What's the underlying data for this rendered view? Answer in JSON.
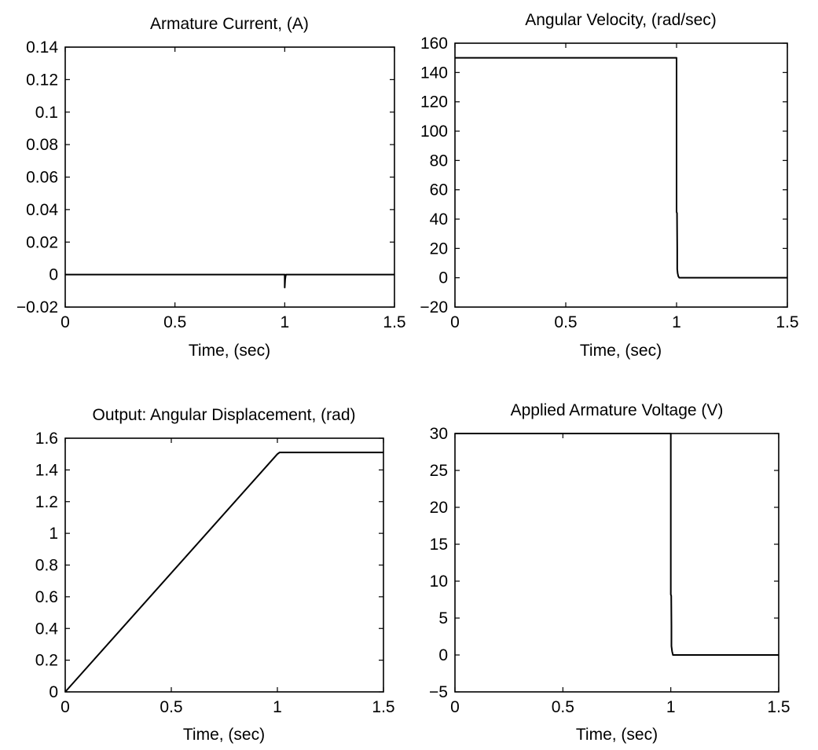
{
  "chart_data": [
    {
      "type": "line",
      "title": "Armature Current, (A)",
      "xlabel": "Time, (sec)",
      "ylabel": "",
      "xlim": [
        0,
        1.5
      ],
      "ylim": [
        -0.02,
        0.14
      ],
      "xticks": [
        0,
        0.5,
        1,
        1.5
      ],
      "xtick_labels": [
        "0",
        "0.5",
        "1",
        "1.5"
      ],
      "yticks": [
        -0.02,
        0,
        0.02,
        0.04,
        0.06,
        0.08,
        0.1,
        0.12,
        0.14
      ],
      "ytick_labels": [
        "−0.02",
        "0",
        "0.02",
        "0.04",
        "0.06",
        "0.08",
        "0.1",
        "0.12",
        "0.14"
      ],
      "grid": false,
      "series": [
        {
          "x": [
            0,
            1.0,
            1.0,
            1.002,
            1.004,
            1.006,
            1.008,
            1.5
          ],
          "y": [
            0,
            0,
            -0.008,
            -0.003,
            -0.001,
            0,
            0,
            0
          ]
        }
      ]
    },
    {
      "type": "line",
      "title": "Angular Velocity, (rad/sec)",
      "xlabel": "Time, (sec)",
      "ylabel": "",
      "xlim": [
        0,
        1.5
      ],
      "ylim": [
        -20,
        160
      ],
      "xticks": [
        0,
        0.5,
        1,
        1.5
      ],
      "xtick_labels": [
        "0",
        "0.5",
        "1",
        "1.5"
      ],
      "yticks": [
        -20,
        0,
        20,
        40,
        60,
        80,
        100,
        120,
        140,
        160
      ],
      "ytick_labels": [
        "−20",
        "0",
        "20",
        "40",
        "60",
        "80",
        "100",
        "120",
        "140",
        "160"
      ],
      "grid": false,
      "series": [
        {
          "x": [
            0,
            1.0,
            1.0,
            1.002,
            1.003,
            1.003,
            1.005,
            1.008,
            1.012,
            1.5
          ],
          "y": [
            150,
            150,
            45,
            44,
            20,
            6,
            3,
            1,
            0,
            0
          ]
        }
      ]
    },
    {
      "type": "line",
      "title": "Output: Angular Displacement, (rad)",
      "xlabel": "Time, (sec)",
      "ylabel": "",
      "xlim": [
        0,
        1.5
      ],
      "ylim": [
        0,
        1.6
      ],
      "xticks": [
        0,
        0.5,
        1,
        1.5
      ],
      "xtick_labels": [
        "0",
        "0.5",
        "1",
        "1.5"
      ],
      "yticks": [
        0,
        0.2,
        0.4,
        0.6,
        0.8,
        1,
        1.2,
        1.4,
        1.6
      ],
      "ytick_labels": [
        "0",
        "0.2",
        "0.4",
        "0.6",
        "0.8",
        "1",
        "1.2",
        "1.4",
        "1.6"
      ],
      "grid": false,
      "series": [
        {
          "x": [
            0,
            1.0,
            1.01,
            1.5
          ],
          "y": [
            0,
            1.5,
            1.51,
            1.51
          ]
        }
      ]
    },
    {
      "type": "line",
      "title": "Applied Armature Voltage (V)",
      "xlabel": "Time, (sec)",
      "ylabel": "",
      "xlim": [
        0,
        1.5
      ],
      "ylim": [
        -5,
        30
      ],
      "xticks": [
        0,
        0.5,
        1,
        1.5
      ],
      "xtick_labels": [
        "0",
        "0.5",
        "1",
        "1.5"
      ],
      "yticks": [
        -5,
        0,
        5,
        10,
        15,
        20,
        25,
        30
      ],
      "ytick_labels": [
        "−5",
        "0",
        "5",
        "10",
        "15",
        "20",
        "25",
        "30"
      ],
      "grid": false,
      "series": [
        {
          "x": [
            0,
            1.0,
            1.0,
            1.002,
            1.003,
            1.003,
            1.006,
            1.01,
            1.5
          ],
          "y": [
            30,
            30,
            8.2,
            8.0,
            4,
            1.2,
            0.5,
            0,
            0
          ]
        }
      ]
    }
  ]
}
